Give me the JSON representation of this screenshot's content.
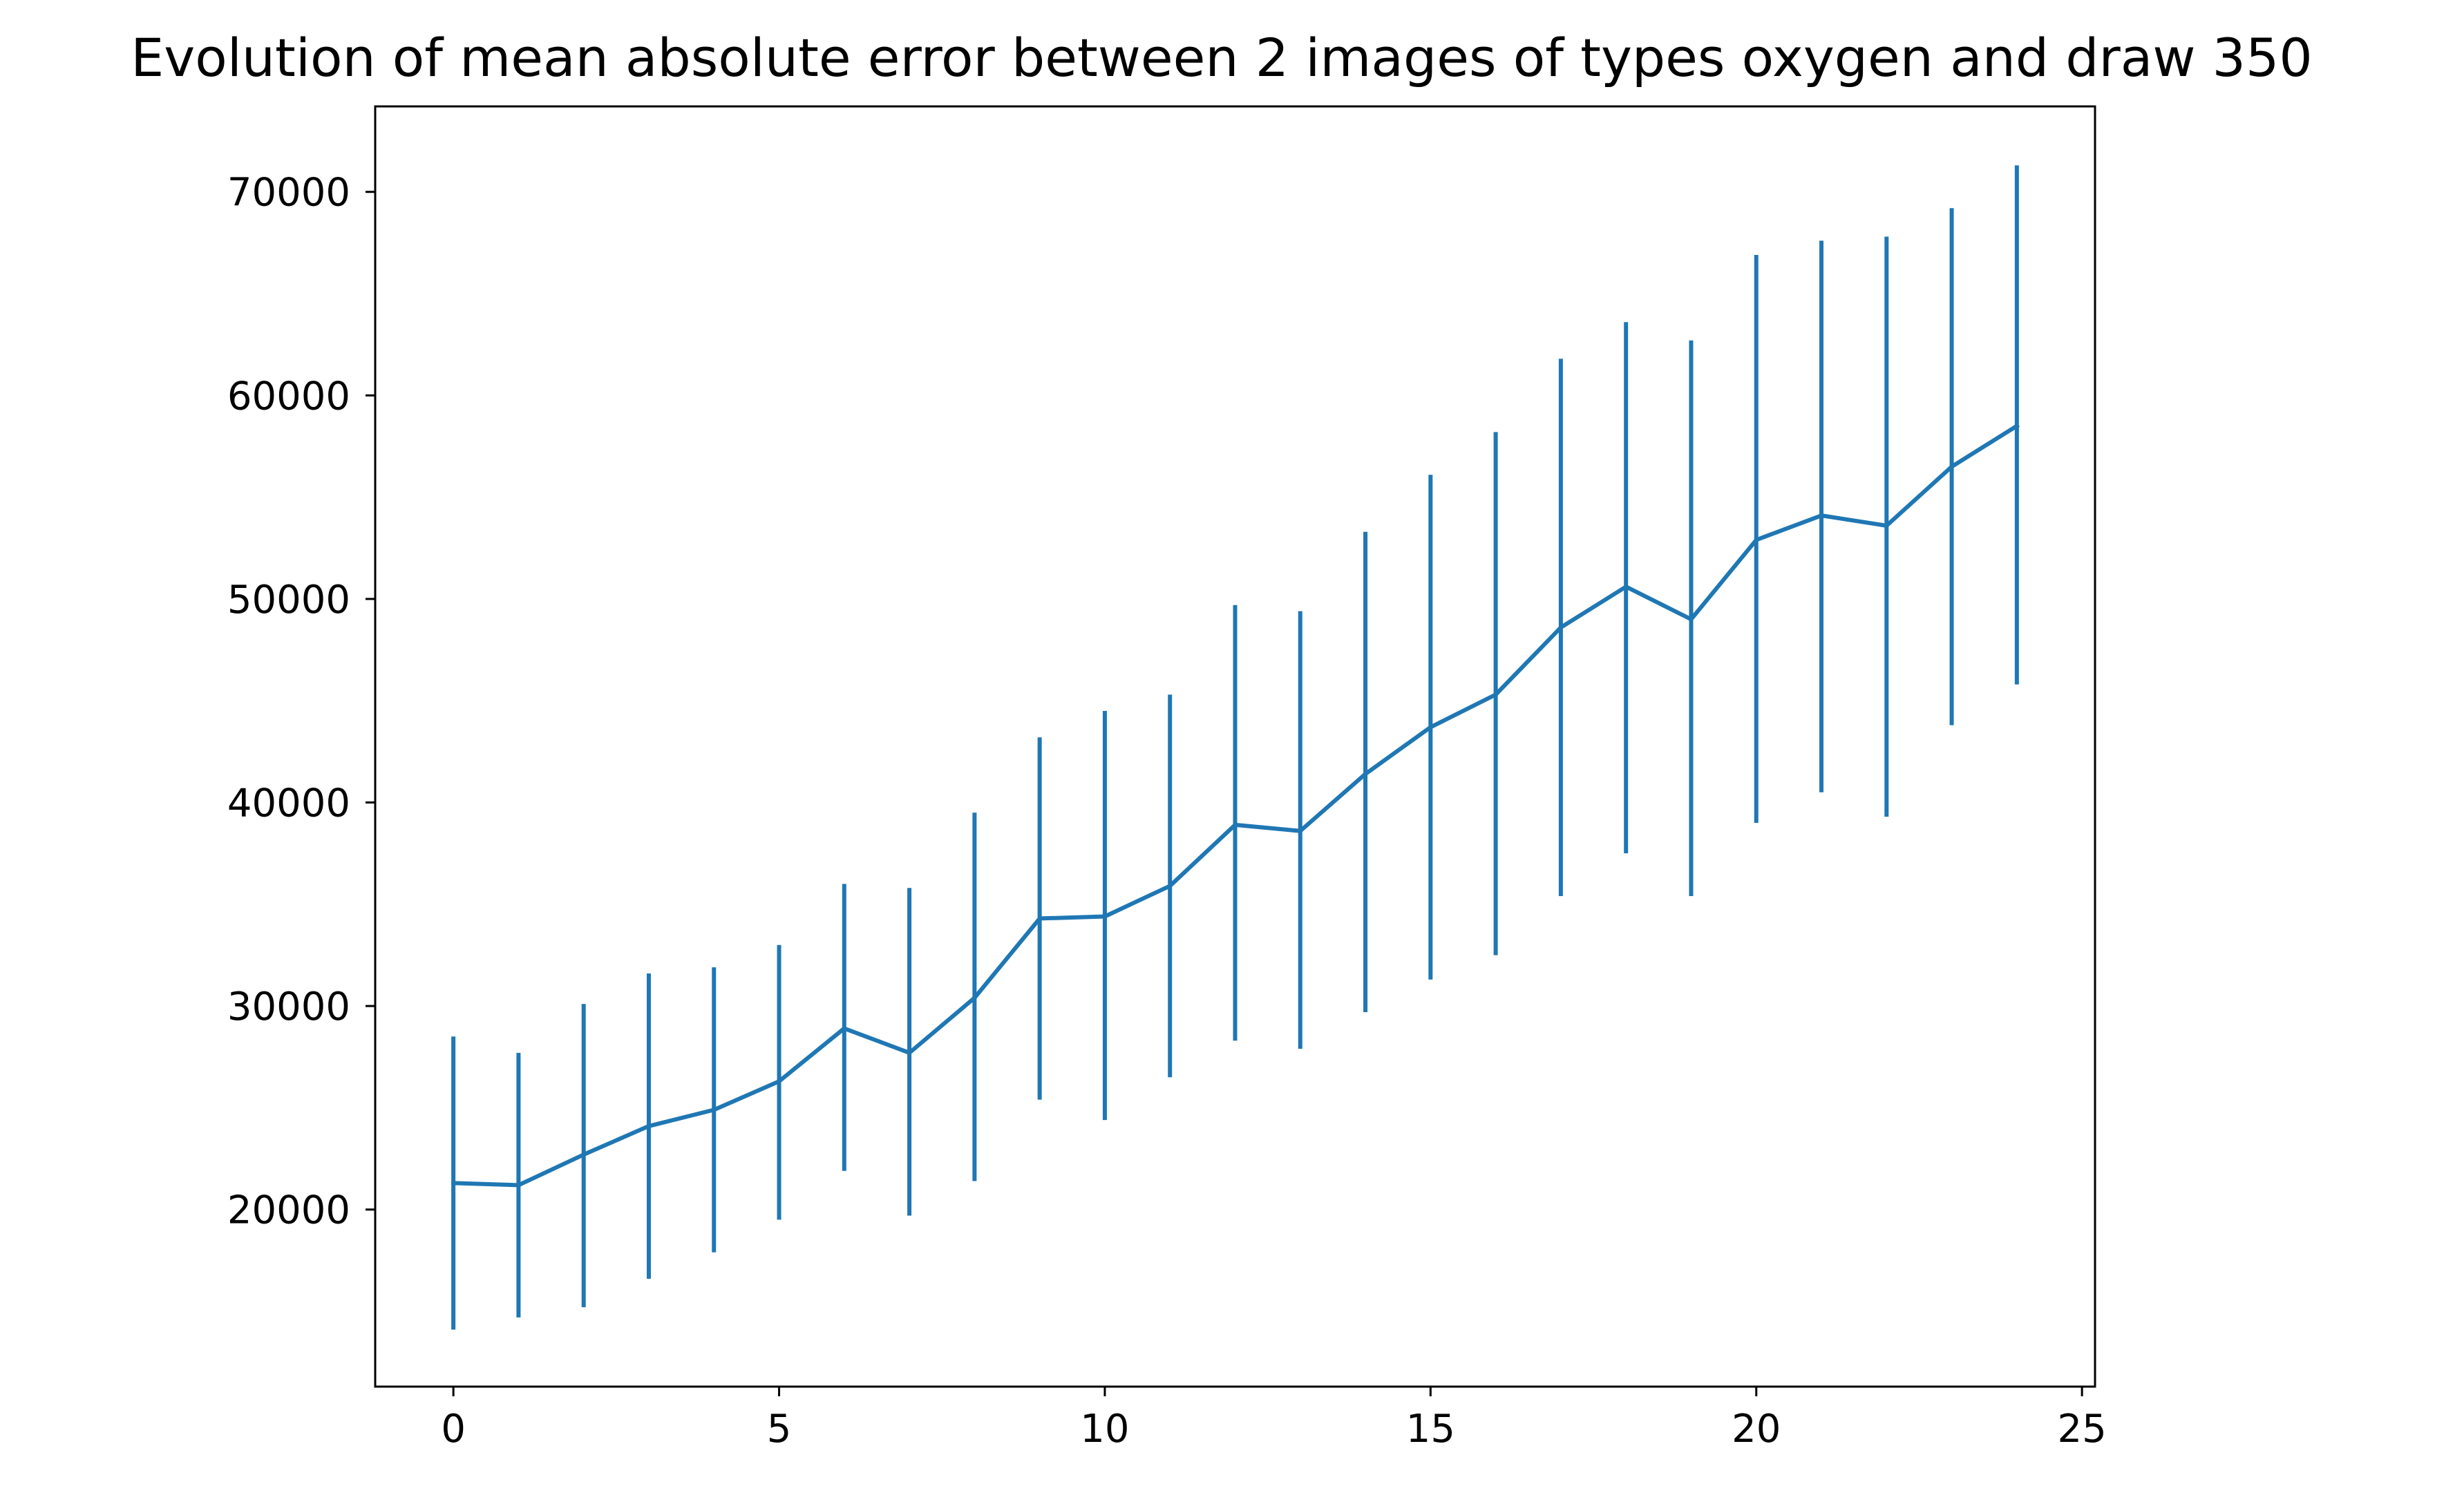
{
  "chart_data": {
    "type": "line",
    "title": "Evolution of mean absolute error between 2 images of types oxygen and draw 350",
    "xlabel": "",
    "ylabel": "",
    "xlim": [
      -1.2,
      25.2
    ],
    "ylim": [
      11300,
      74200
    ],
    "x_ticks": [
      0,
      5,
      10,
      15,
      20,
      25
    ],
    "x_tick_labels": [
      "0",
      "5",
      "10",
      "15",
      "20",
      "25"
    ],
    "y_ticks": [
      20000,
      30000,
      40000,
      50000,
      60000,
      70000
    ],
    "y_tick_labels": [
      "20000",
      "30000",
      "40000",
      "50000",
      "60000",
      "70000"
    ],
    "grid": false,
    "legend": "none",
    "series": [
      {
        "color": "#1f77b4",
        "x": [
          0,
          1,
          2,
          3,
          4,
          5,
          6,
          7,
          8,
          9,
          10,
          11,
          12,
          13,
          14,
          15,
          16,
          17,
          18,
          19,
          20,
          21,
          22,
          23,
          24
        ],
        "values": [
          21300,
          21200,
          22700,
          24100,
          24900,
          26300,
          28900,
          27700,
          30400,
          34300,
          34400,
          35900,
          38900,
          38600,
          41400,
          43700,
          45300,
          48600,
          50600,
          49000,
          52900,
          54100,
          53600,
          56500,
          58500
        ],
        "error_lower": [
          14100,
          14700,
          15200,
          16600,
          17900,
          19500,
          21900,
          19700,
          21400,
          25400,
          24400,
          26500,
          28300,
          27900,
          29700,
          31300,
          32500,
          35400,
          37500,
          35400,
          39000,
          40500,
          39300,
          43800,
          45800
        ],
        "error_upper": [
          28500,
          27700,
          30100,
          31600,
          31900,
          33000,
          36000,
          35800,
          39500,
          43200,
          44500,
          45300,
          49700,
          49400,
          53300,
          56100,
          58200,
          61800,
          63600,
          62700,
          66900,
          67600,
          67800,
          69200,
          71300
        ]
      }
    ]
  }
}
